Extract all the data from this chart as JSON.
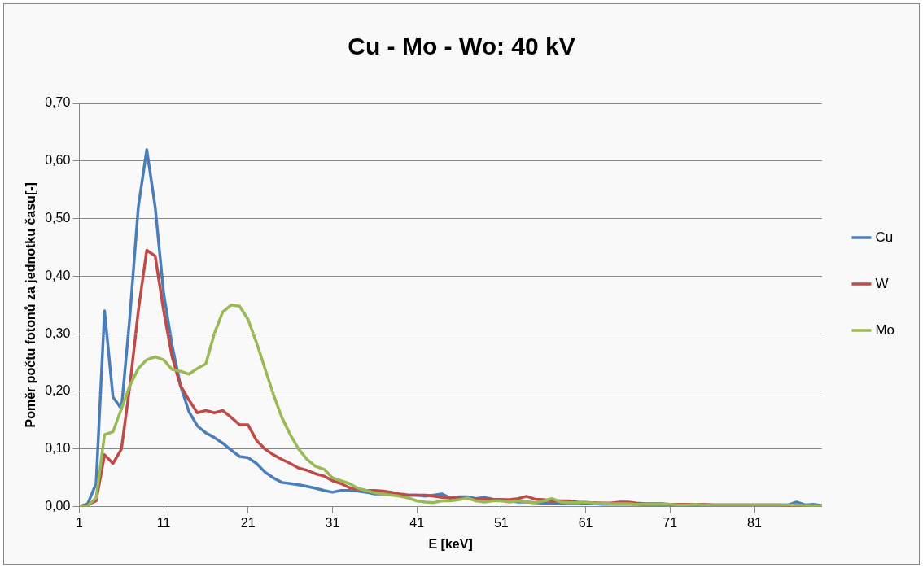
{
  "chart_data": {
    "type": "line",
    "title": "Cu - Mo - Wo: 40 kV",
    "xlabel": "E [keV]",
    "ylabel": "Poměr počtu fotonů za jednotku času[-]",
    "x": [
      1,
      2,
      3,
      4,
      5,
      6,
      7,
      8,
      9,
      10,
      11,
      12,
      13,
      14,
      15,
      16,
      17,
      18,
      19,
      20,
      21,
      22,
      23,
      24,
      25,
      26,
      27,
      28,
      29,
      30,
      31,
      32,
      33,
      34,
      35,
      36,
      37,
      38,
      39,
      40,
      41,
      42,
      43,
      44,
      45,
      46,
      47,
      48,
      49,
      50,
      51,
      52,
      53,
      54,
      55,
      56,
      57,
      58,
      59,
      60,
      61,
      62,
      63,
      64,
      65,
      66,
      67,
      68,
      69,
      70,
      71,
      72,
      73,
      74,
      75,
      76,
      77,
      78,
      79,
      80,
      81,
      82,
      83,
      84,
      85,
      86,
      87,
      88,
      89
    ],
    "series": [
      {
        "name": "Cu",
        "color": "#4a7ebb",
        "values": [
          0,
          0.005,
          0.04,
          0.34,
          0.19,
          0.17,
          0.33,
          0.52,
          0.62,
          0.52,
          0.37,
          0.28,
          0.21,
          0.165,
          0.14,
          0.128,
          0.12,
          0.11,
          0.098,
          0.087,
          0.085,
          0.075,
          0.06,
          0.05,
          0.042,
          0.04,
          0.038,
          0.035,
          0.032,
          0.028,
          0.025,
          0.028,
          0.028,
          0.027,
          0.025,
          0.022,
          0.022,
          0.023,
          0.02,
          0.02,
          0.02,
          0.018,
          0.02,
          0.022,
          0.015,
          0.017,
          0.017,
          0.014,
          0.016,
          0.013,
          0.012,
          0.01,
          0.008,
          0.008,
          0.007,
          0.006,
          0.006,
          0.005,
          0.005,
          0.005,
          0.005,
          0.005,
          0.004,
          0.004,
          0.004,
          0.004,
          0.004,
          0.003,
          0.003,
          0.003,
          0.003,
          0.003,
          0.003,
          0.003,
          0.003,
          0.003,
          0.003,
          0.003,
          0.003,
          0.003,
          0.003,
          0.003,
          0.003,
          0.003,
          0.003,
          0.008,
          0.003,
          0.004,
          0.002
        ]
      },
      {
        "name": "W",
        "color": "#be4b48",
        "values": [
          0,
          0.003,
          0.01,
          0.09,
          0.075,
          0.1,
          0.21,
          0.34,
          0.445,
          0.435,
          0.34,
          0.26,
          0.21,
          0.185,
          0.163,
          0.167,
          0.163,
          0.167,
          0.155,
          0.142,
          0.142,
          0.115,
          0.1,
          0.09,
          0.082,
          0.075,
          0.067,
          0.063,
          0.057,
          0.053,
          0.045,
          0.04,
          0.033,
          0.03,
          0.028,
          0.028,
          0.027,
          0.025,
          0.022,
          0.02,
          0.02,
          0.02,
          0.018,
          0.016,
          0.015,
          0.015,
          0.014,
          0.014,
          0.013,
          0.012,
          0.012,
          0.012,
          0.014,
          0.018,
          0.013,
          0.012,
          0.01,
          0.01,
          0.01,
          0.008,
          0.007,
          0.007,
          0.006,
          0.006,
          0.008,
          0.008,
          0.006,
          0.005,
          0.005,
          0.005,
          0.004,
          0.004,
          0.004,
          0.004,
          0.004,
          0.003,
          0.003,
          0.003,
          0.003,
          0.003,
          0.003,
          0.003,
          0.003,
          0.003,
          0.002,
          0.002,
          0.002,
          null,
          null
        ]
      },
      {
        "name": "Mo",
        "color": "#98b954",
        "values": [
          0,
          0.002,
          0.015,
          0.125,
          0.13,
          0.17,
          0.21,
          0.24,
          0.255,
          0.26,
          0.255,
          0.238,
          0.235,
          0.23,
          0.24,
          0.248,
          0.3,
          0.338,
          0.35,
          0.348,
          0.325,
          0.285,
          0.24,
          0.195,
          0.155,
          0.125,
          0.1,
          0.082,
          0.07,
          0.065,
          0.05,
          0.045,
          0.04,
          0.032,
          0.028,
          0.024,
          0.022,
          0.02,
          0.018,
          0.015,
          0.01,
          0.008,
          0.007,
          0.01,
          0.01,
          0.012,
          0.015,
          0.01,
          0.008,
          0.01,
          0.01,
          0.008,
          0.01,
          0.008,
          0.007,
          0.01,
          0.014,
          0.008,
          0.007,
          0.007,
          0.008,
          0.006,
          0.006,
          0.005,
          0.005,
          0.005,
          0.004,
          0.004,
          0.004,
          0.004,
          0.004,
          0.003,
          0.003,
          0.004,
          0.003,
          0.003,
          0.003,
          0.003,
          0.003,
          0.003,
          0.003,
          0.003,
          0.003,
          0.003,
          0.003,
          0.003,
          0.002,
          0.002,
          0.001
        ]
      }
    ],
    "xlim": [
      1,
      89
    ],
    "xticks": [
      1,
      11,
      21,
      31,
      41,
      51,
      61,
      71,
      81
    ],
    "ylim": [
      0,
      0.7
    ],
    "yticks": [
      {
        "value": 0,
        "label": "0,00"
      },
      {
        "value": 0.1,
        "label": "0,10"
      },
      {
        "value": 0.2,
        "label": "0,20"
      },
      {
        "value": 0.3,
        "label": "0,30"
      },
      {
        "value": 0.4,
        "label": "0,40"
      },
      {
        "value": 0.5,
        "label": "0,50"
      },
      {
        "value": 0.6,
        "label": "0,60"
      },
      {
        "value": 0.7,
        "label": "0,70"
      }
    ],
    "grid": "y",
    "legend": "right",
    "marker": "none",
    "line_style": "solid"
  }
}
